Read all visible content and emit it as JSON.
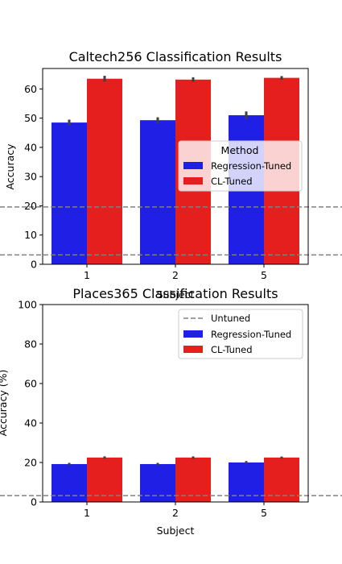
{
  "colors": {
    "regression": "#1f1fe6",
    "cl": "#e51e1e",
    "untuned": "#808080",
    "errorbar": "#404040"
  },
  "chart_data": [
    {
      "type": "bar",
      "title": "Caltech256 Classification Results",
      "xlabel": "Subject",
      "ylabel": "Accuracy",
      "categories": [
        "1",
        "2",
        "5"
      ],
      "ylim": [
        0,
        67
      ],
      "yticks": [
        0,
        10,
        20,
        30,
        40,
        50,
        60
      ],
      "series": [
        {
          "name": "Regression-Tuned",
          "values": [
            48.5,
            49.3,
            51.0
          ],
          "err": [
            1.0,
            1.0,
            1.3
          ]
        },
        {
          "name": "CL-Tuned",
          "values": [
            63.5,
            63.2,
            63.8
          ],
          "err": [
            1.0,
            0.8,
            0.6
          ]
        }
      ],
      "hlines": [
        19.6,
        3.2
      ],
      "legend": {
        "title": "Method",
        "position": "center-right",
        "entries": [
          "Regression-Tuned",
          "CL-Tuned"
        ]
      }
    },
    {
      "type": "bar",
      "title": "Places365 Classification Results",
      "xlabel": "Subject",
      "ylabel": "Accuracy (%)",
      "categories": [
        "1",
        "2",
        "5"
      ],
      "ylim": [
        0,
        100
      ],
      "yticks": [
        0,
        20,
        40,
        60,
        80,
        100
      ],
      "series": [
        {
          "name": "Regression-Tuned",
          "values": [
            19.2,
            19.2,
            20.0
          ],
          "err": [
            0.6,
            0.6,
            0.7
          ]
        },
        {
          "name": "CL-Tuned",
          "values": [
            22.5,
            22.5,
            22.5
          ],
          "err": [
            0.6,
            0.6,
            0.5
          ]
        }
      ],
      "hlines": [
        3.2
      ],
      "legend": {
        "position": "top-right",
        "entries": [
          "Untuned",
          "Regression-Tuned",
          "CL-Tuned"
        ]
      }
    }
  ]
}
